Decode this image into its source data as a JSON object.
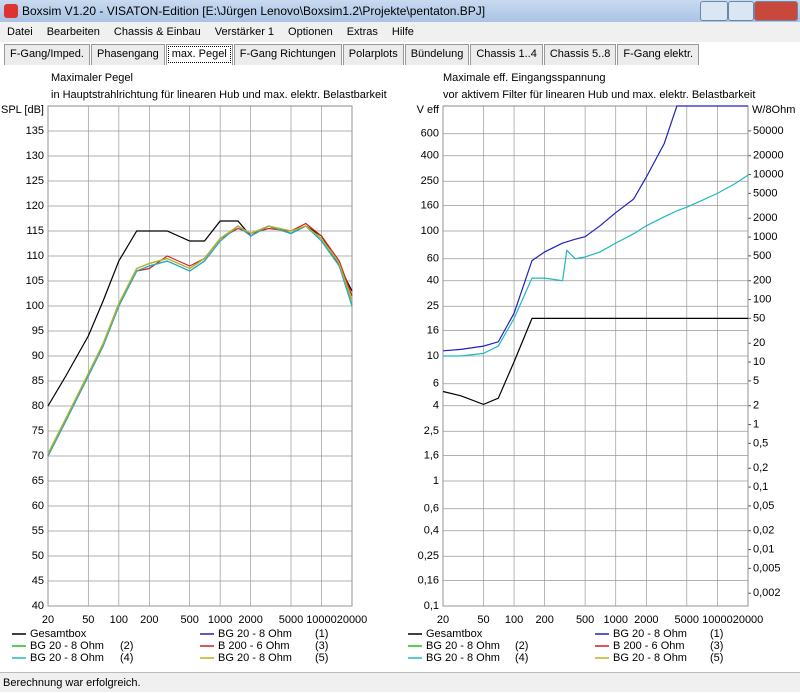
{
  "window": {
    "title": "Boxsim V1.20 - VISATON-Edition [E:\\Jürgen Lenovo\\Boxsim1.2\\Projekte\\pentaton.BPJ]",
    "menu": [
      "Datei",
      "Bearbeiten",
      "Chassis & Einbau",
      "Verstärker 1",
      "Optionen",
      "Extras",
      "Hilfe"
    ],
    "tabs": [
      "F-Gang/Imped.",
      "Phasengang",
      "max. Pegel",
      "F-Gang Richtungen",
      "Polarplots",
      "Bündelung",
      "Chassis 1..4",
      "Chassis 5..8",
      "F-Gang elektr."
    ],
    "active_tab": 2,
    "status": "Berechnung war erfolgreich."
  },
  "chart_data": [
    {
      "type": "line",
      "title": "Maximaler Pegel",
      "subtitle": "in Hauptstrahlrichtung für linearen Hub und max. elektr. Belastbarkeit",
      "ylabel": "SPL [dB]",
      "xlog": true,
      "xlim": [
        20,
        20000
      ],
      "xticks": [
        20,
        50,
        100,
        200,
        500,
        1000,
        2000,
        5000,
        10000,
        20000
      ],
      "ylog": false,
      "ylim": [
        40,
        140
      ],
      "yticks": [
        40,
        45,
        50,
        55,
        60,
        65,
        70,
        75,
        80,
        85,
        90,
        95,
        100,
        105,
        110,
        115,
        120,
        125,
        130,
        135
      ],
      "grid": true,
      "x": [
        20,
        30,
        50,
        70,
        100,
        150,
        200,
        300,
        500,
        700,
        1000,
        1500,
        2000,
        3000,
        5000,
        7000,
        10000,
        15000,
        20000
      ],
      "series": [
        {
          "name": "Gesamtbox",
          "tag": null,
          "color": "#000000",
          "values": [
            80,
            86,
            94,
            101,
            109,
            115,
            115,
            115,
            113,
            113,
            117,
            117,
            114,
            116,
            114.5,
            116,
            114,
            108,
            103
          ]
        },
        {
          "name": "BG 20 - 8 Ohm",
          "tag": "(1)",
          "color": "#2020c0",
          "values": [
            70,
            77,
            86,
            92,
            100,
            107,
            108,
            109,
            107,
            109,
            113,
            116,
            114,
            116,
            114.5,
            116,
            113,
            108,
            100
          ]
        },
        {
          "name": "BG 20 - 8 Ohm",
          "tag": "(2)",
          "color": "#20c020",
          "values": [
            70.5,
            77.5,
            86.5,
            92.5,
            100.5,
            107.5,
            108.5,
            109.5,
            107.5,
            109.5,
            113.5,
            116,
            114.5,
            116,
            115,
            116,
            113.5,
            108.5,
            101
          ]
        },
        {
          "name": "B 200 - 6 Ohm",
          "tag": "(3)",
          "color": "#d02020",
          "values": [
            70,
            77,
            86,
            92,
            100,
            107,
            107.5,
            110,
            108,
            109.5,
            113.5,
            115.5,
            114.5,
            115.5,
            115,
            116.5,
            114,
            109,
            102
          ]
        },
        {
          "name": "BG 20 - 8 Ohm",
          "tag": "(4)",
          "color": "#20b8c0",
          "values": [
            70,
            77,
            86,
            92,
            100,
            107,
            108,
            109,
            107,
            109,
            113,
            116,
            114,
            116,
            114.5,
            116,
            113,
            108,
            100
          ]
        },
        {
          "name": "BG 20 - 8 Ohm",
          "tag": "(5)",
          "color": "#c0b020",
          "values": [
            70.5,
            77.5,
            86.5,
            92.5,
            100.5,
            107.5,
            108.5,
            109.5,
            107.5,
            109.5,
            113.5,
            116,
            114.5,
            116,
            115,
            116,
            113.5,
            108.5,
            101
          ]
        }
      ]
    },
    {
      "type": "line",
      "title": "Maximale eff. Eingangsspannung",
      "subtitle": "vor aktivem Filter für linearen Hub und max. elektr. Belastbarkeit",
      "ylabel": "V eff",
      "y2label": "W/8Ohm",
      "xlog": true,
      "xlim": [
        20,
        20000
      ],
      "xticks": [
        20,
        50,
        100,
        200,
        500,
        1000,
        2000,
        5000,
        10000,
        20000
      ],
      "ylog": true,
      "ylim": [
        0.1,
        1000
      ],
      "yticks": [
        {
          "value": 0.1,
          "label": "0,1"
        },
        {
          "value": 0.16,
          "label": "0,16"
        },
        {
          "value": 0.25,
          "label": "0,25"
        },
        {
          "value": 0.4,
          "label": "0,4"
        },
        {
          "value": 0.6,
          "label": "0,6"
        },
        1,
        {
          "value": 1.6,
          "label": "1,6"
        },
        {
          "value": 2.5,
          "label": "2,5"
        },
        4,
        6,
        10,
        16,
        25,
        40,
        60,
        100,
        160,
        250,
        400,
        600
      ],
      "y2lim": [
        0.00125,
        125000
      ],
      "y2ticks": [
        {
          "value": 0.002,
          "label": "0,002"
        },
        {
          "value": 0.005,
          "label": "0,005"
        },
        {
          "value": 0.01,
          "label": "0,01"
        },
        {
          "value": 0.02,
          "label": "0,02"
        },
        {
          "value": 0.05,
          "label": "0,05"
        },
        {
          "value": 0.1,
          "label": "0,1"
        },
        {
          "value": 0.2,
          "label": "0,2"
        },
        {
          "value": 0.5,
          "label": "0,5"
        },
        1,
        2,
        5,
        10,
        20,
        50,
        100,
        200,
        500,
        1000,
        2000,
        5000,
        10000,
        20000,
        50000
      ],
      "grid": true,
      "x": [
        20,
        30,
        50,
        70,
        100,
        150,
        200,
        300,
        330,
        400,
        500,
        700,
        1000,
        1500,
        2000,
        3000,
        4000,
        5000,
        7000,
        10000,
        15000,
        20000
      ],
      "series": [
        {
          "name": "Gesamtbox",
          "tag": null,
          "color": "#000000",
          "values": [
            5.2,
            4.8,
            4.1,
            4.6,
            9,
            20,
            20,
            20,
            20,
            20,
            20,
            20,
            20,
            20,
            20,
            20,
            20,
            20,
            20,
            20,
            20,
            20
          ]
        },
        {
          "name": "BG 20 - 8 Ohm",
          "tag": "(1)",
          "color": "#2020c0",
          "values": [
            11,
            11.3,
            12,
            13,
            22,
            58,
            68,
            80,
            82,
            86,
            90,
            110,
            140,
            180,
            270,
            500,
            1000,
            1000,
            1000,
            1000,
            1000,
            1000
          ]
        },
        {
          "name": "BG 20 - 8 Ohm",
          "tag": "(2)",
          "color": "#20c020",
          "values": [
            null,
            null,
            null,
            null,
            null,
            null,
            null,
            null,
            null,
            null,
            null,
            null,
            null,
            null,
            null,
            null,
            null,
            null,
            null,
            null,
            null,
            null
          ]
        },
        {
          "name": "B 200 - 6 Ohm",
          "tag": "(3)",
          "color": "#d02020",
          "values": [
            null,
            null,
            null,
            null,
            null,
            null,
            null,
            null,
            null,
            null,
            null,
            null,
            null,
            null,
            null,
            null,
            null,
            null,
            null,
            null,
            null,
            null
          ]
        },
        {
          "name": "BG 20 - 8 Ohm",
          "tag": "(4)",
          "color": "#20b8c0",
          "values": [
            10,
            10,
            10.5,
            12,
            20,
            42,
            42,
            40,
            70,
            60,
            62,
            68,
            80,
            95,
            110,
            130,
            145,
            155,
            175,
            200,
            240,
            280
          ]
        },
        {
          "name": "BG 20 - 8 Ohm",
          "tag": "(5)",
          "color": "#c0b020",
          "values": [
            null,
            null,
            null,
            null,
            null,
            null,
            null,
            null,
            null,
            null,
            null,
            null,
            null,
            null,
            null,
            null,
            null,
            null,
            null,
            null,
            null,
            null
          ]
        }
      ]
    }
  ]
}
